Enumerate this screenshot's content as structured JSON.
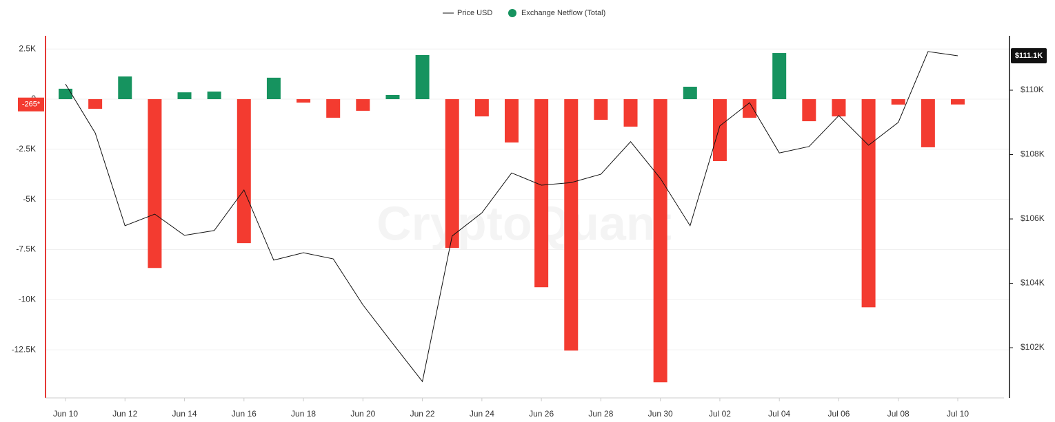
{
  "chart_data": {
    "type": "bar-line",
    "watermark": "CryptoQuant",
    "categories": [
      "Jun 10",
      null,
      "Jun 12",
      null,
      "Jun 14",
      null,
      "Jun 16",
      null,
      "Jun 18",
      null,
      "Jun 20",
      null,
      "Jun 22",
      null,
      "Jun 24",
      null,
      "Jun 26",
      null,
      "Jun 28",
      null,
      "Jun 30",
      null,
      "Jul 02",
      null,
      "Jul 04",
      null,
      "Jul 06",
      null,
      "Jul 08",
      null,
      "Jul 10"
    ],
    "series": [
      {
        "name": "Price USD",
        "type": "line",
        "axis": "y2",
        "color": "#111111",
        "values": [
          110190,
          108670,
          105790,
          106150,
          105490,
          105640,
          106900,
          104720,
          104950,
          104760,
          103330,
          102130,
          100950,
          105470,
          106190,
          107430,
          107050,
          107130,
          107390,
          108400,
          107260,
          105790,
          108890,
          109610,
          108050,
          108250,
          109210,
          108290,
          109000,
          111200,
          111070
        ],
        "current_label": "$111.1K"
      },
      {
        "name": "Exchange Netflow (Total)",
        "type": "bar",
        "axis": "y",
        "color": "#16935f",
        "negative_color": "#f33b30",
        "values": [
          520,
          -480,
          1130,
          -8420,
          340,
          380,
          -7180,
          1070,
          -170,
          -930,
          -580,
          210,
          2200,
          -7420,
          -860,
          -2160,
          -9380,
          -12540,
          -1030,
          -1370,
          -14120,
          620,
          -3090,
          -930,
          2300,
          -1100,
          -860,
          -10380,
          -270,
          -2400,
          -265
        ],
        "current_label": "-265*"
      }
    ],
    "ylim": [
      -14900,
      3160
    ],
    "yticks": [
      {
        "value": 2500,
        "label": "2.5K"
      },
      {
        "value": 0,
        "label": "0"
      },
      {
        "value": -2500,
        "label": "-2.5K"
      },
      {
        "value": -5000,
        "label": "-5K"
      },
      {
        "value": -7500,
        "label": "-7.5K"
      },
      {
        "value": -10000,
        "label": "-10K"
      },
      {
        "value": -12500,
        "label": "-12.5K"
      }
    ],
    "y2lim": [
      100440,
      111690
    ],
    "y2ticks": [
      {
        "value": 110000,
        "label": "$110K"
      },
      {
        "value": 108000,
        "label": "$108K"
      },
      {
        "value": 106000,
        "label": "$106K"
      },
      {
        "value": 104000,
        "label": "$104K"
      },
      {
        "value": 102000,
        "label": "$102K"
      }
    ],
    "grid": true
  }
}
